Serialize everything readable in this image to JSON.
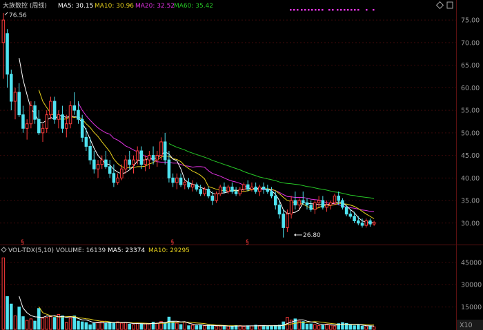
{
  "header": {
    "stock_name": "大族数控 (周线)",
    "ma5": "MA5: 30.15",
    "ma10": "MA10: 30.96",
    "ma20": "MA20: 32.52",
    "ma60": "MA60: 35.42",
    "settings_icon": "diamond-icon",
    "expand_icon": "square-icon"
  },
  "volume_header": {
    "title": "VOL-TDX(5,10)",
    "volume": "VOLUME: 16139",
    "ma5": "MA5: 23374",
    "ma10": "MA10: 29295",
    "settings_icon": "diamond-icon"
  },
  "annotations": {
    "high": "76.56",
    "low": "26.80",
    "event_mark": "§",
    "volume_unit": "X10"
  },
  "colors": {
    "up": "#ff3b3b",
    "down": "#4fe3f0",
    "ma5": "#ffffff",
    "ma10": "#e8d21d",
    "ma20": "#e233e2",
    "ma60": "#27c827",
    "grid": "#3a0a0a",
    "axis_text": "#9a9a9a",
    "background": "#000000"
  },
  "chart_data": [
    {
      "type": "candlestick",
      "title": "大族数控 (周线)",
      "ylim": [
        26,
        77
      ],
      "yticks": [
        30,
        35,
        40,
        45,
        50,
        55,
        60,
        65,
        70,
        75
      ],
      "grid": true,
      "max_label": 76.56,
      "min_label": 26.8,
      "event_marks_at_index": [
        5,
        43,
        62
      ],
      "candles": [
        [
          70,
          76.56,
          62,
          75
        ],
        [
          72,
          73,
          60,
          63
        ],
        [
          63,
          64,
          55,
          57
        ],
        [
          57,
          60,
          53,
          59
        ],
        [
          59,
          61,
          53.5,
          54
        ],
        [
          54,
          56,
          50,
          51
        ],
        [
          51,
          53,
          48.5,
          52
        ],
        [
          52,
          57,
          51,
          56
        ],
        [
          56,
          57,
          52,
          53
        ],
        [
          53,
          55,
          49.5,
          50
        ],
        [
          50,
          52,
          48,
          51
        ],
        [
          51,
          55,
          50,
          54
        ],
        [
          54,
          58,
          53,
          57
        ],
        [
          57,
          58,
          52,
          53
        ],
        [
          53,
          55,
          51,
          54
        ],
        [
          54,
          56,
          50,
          51
        ],
        [
          51,
          54,
          49,
          52
        ],
        [
          52,
          57,
          51,
          56
        ],
        [
          56,
          59,
          54,
          55
        ],
        [
          55,
          57,
          52,
          53
        ],
        [
          53,
          54,
          48,
          49
        ],
        [
          49,
          51,
          46,
          47
        ],
        [
          47,
          49,
          43,
          44
        ],
        [
          44,
          46,
          41,
          42
        ],
        [
          42,
          44,
          40,
          43
        ],
        [
          43,
          45,
          42,
          44
        ],
        [
          44,
          46,
          42,
          42.5
        ],
        [
          42.5,
          44,
          40,
          41
        ],
        [
          41,
          43,
          38,
          39
        ],
        [
          39,
          41,
          38.5,
          40
        ],
        [
          40,
          43,
          39.5,
          42
        ],
        [
          42,
          45,
          41,
          44
        ],
        [
          44,
          46,
          42,
          43
        ],
        [
          43,
          45,
          41,
          44
        ],
        [
          44,
          47,
          43,
          46
        ],
        [
          46,
          47,
          42,
          43
        ],
        [
          43,
          45,
          41.5,
          44
        ],
        [
          44,
          46,
          42,
          45
        ],
        [
          45,
          47,
          43,
          44
        ],
        [
          44,
          46,
          42.5,
          45
        ],
        [
          45,
          49,
          44,
          48
        ],
        [
          48,
          50,
          43,
          44
        ],
        [
          44,
          46,
          39,
          40
        ],
        [
          40,
          41,
          38,
          39
        ],
        [
          39,
          41,
          37.5,
          40
        ],
        [
          40,
          41,
          38,
          38.5
        ],
        [
          38.5,
          39.5,
          37.5,
          39
        ],
        [
          39,
          40,
          37.5,
          38
        ],
        [
          38,
          39.5,
          37,
          38.5
        ],
        [
          38.5,
          39,
          37,
          37.5
        ],
        [
          37.5,
          38.5,
          36,
          36.5
        ],
        [
          36.5,
          38,
          36,
          37.5
        ],
        [
          37.5,
          38,
          35.5,
          36
        ],
        [
          36,
          37,
          34,
          35
        ],
        [
          35,
          37,
          34.5,
          36.5
        ],
        [
          36.5,
          38.5,
          36,
          38
        ],
        [
          38,
          39,
          36.5,
          37
        ],
        [
          37,
          38.5,
          36.5,
          38
        ],
        [
          38,
          39,
          36.5,
          37
        ],
        [
          37,
          38,
          36,
          36.5
        ],
        [
          36.5,
          38,
          36,
          37.5
        ],
        [
          37.5,
          39,
          37,
          38.5
        ],
        [
          38.5,
          39.5,
          37,
          37.5
        ],
        [
          37.5,
          39,
          37,
          38
        ],
        [
          38,
          39,
          36.5,
          37
        ],
        [
          37,
          38.5,
          36,
          38
        ],
        [
          38,
          39,
          36.5,
          37.5
        ],
        [
          37.5,
          38.5,
          36.5,
          37
        ],
        [
          37,
          38,
          35.5,
          36
        ],
        [
          36,
          37,
          33,
          34
        ],
        [
          34,
          35,
          31,
          32
        ],
        [
          32,
          33,
          26.8,
          29
        ],
        [
          29,
          33,
          28,
          32
        ],
        [
          32,
          36,
          31,
          35
        ],
        [
          35,
          37,
          33,
          34
        ],
        [
          34,
          35.5,
          33,
          35
        ],
        [
          35,
          37,
          34,
          34.5
        ],
        [
          34.5,
          35.5,
          33,
          34
        ],
        [
          34,
          35,
          32.5,
          33
        ],
        [
          33,
          35,
          32,
          34.5
        ],
        [
          34.5,
          36,
          33.5,
          35
        ],
        [
          35,
          36,
          33,
          33.5
        ],
        [
          33.5,
          35,
          32.5,
          34
        ],
        [
          34,
          35,
          33,
          34.5
        ],
        [
          34.5,
          36.5,
          34,
          36
        ],
        [
          36,
          37,
          34,
          35
        ],
        [
          35,
          35.5,
          33,
          33.5
        ],
        [
          33.5,
          34,
          31.5,
          32
        ],
        [
          32,
          33,
          31,
          31.5
        ],
        [
          31.5,
          32.5,
          30,
          30.5
        ],
        [
          30.5,
          31.5,
          29.5,
          30
        ],
        [
          30,
          31,
          29,
          29.5
        ],
        [
          29.5,
          31,
          29,
          30.5
        ],
        [
          30.5,
          31,
          29.2,
          29.8
        ],
        [
          29.8,
          30.5,
          29.4,
          30.15
        ]
      ],
      "ma5": [
        null,
        null,
        null,
        null,
        66.6,
        61.8,
        58.4,
        55.3,
        54.3,
        52.4,
        52.2,
        52.8,
        53.4,
        53.1,
        53.8,
        53.8,
        53.4,
        53.8,
        53.6,
        53.4,
        52.2,
        50.6,
        48.6,
        46.6,
        45.0,
        44.0,
        43.2,
        42.9,
        41.9,
        41.3,
        40.9,
        41.2,
        41.8,
        42.6,
        43.8,
        44.0,
        44.0,
        44.4,
        44.4,
        44.4,
        45.2,
        45.8,
        45.3,
        44.2,
        43.8,
        42.0,
        39.6,
        38.9,
        38.6,
        38.4,
        37.9,
        37.6,
        37.3,
        36.6,
        36.4,
        36.6,
        36.7,
        36.9,
        37.3,
        37.3,
        37.2,
        37.5,
        37.6,
        37.7,
        37.6,
        37.8,
        37.6,
        37.5,
        37.2,
        36.4,
        35.0,
        32.9,
        32.1,
        32.3,
        32.4,
        32.9,
        34.5,
        34.4,
        34.3,
        34.2,
        34.1,
        34.1,
        34.1,
        34.2,
        34.5,
        34.7,
        34.6,
        33.8,
        33.0,
        32.3,
        31.2,
        30.5,
        30.2,
        30.1,
        30.15
      ],
      "ma10": [
        null,
        null,
        null,
        null,
        null,
        null,
        null,
        null,
        null,
        59.5,
        57.0,
        55.6,
        54.4,
        53.7,
        53.1,
        53.0,
        53.1,
        53.6,
        53.4,
        53.6,
        53.0,
        52.0,
        51.2,
        50.1,
        49.2,
        48.0,
        46.9,
        45.8,
        44.2,
        43.2,
        42.5,
        42.2,
        42.3,
        42.3,
        42.5,
        42.5,
        42.6,
        43.1,
        43.4,
        44.1,
        44.6,
        44.9,
        44.8,
        44.3,
        44.1,
        43.6,
        42.7,
        42.1,
        41.5,
        41.1,
        40.6,
        39.8,
        38.1,
        37.8,
        37.5,
        37.3,
        37.2,
        37.2,
        37.2,
        37.2,
        37.1,
        37.0,
        37.2,
        37.4,
        37.5,
        37.6,
        37.6,
        37.6,
        37.5,
        37.2,
        36.5,
        35.7,
        35.0,
        34.8,
        34.5,
        34.4,
        34.2,
        33.7,
        33.3,
        33.2,
        33.4,
        33.9,
        33.9,
        33.9,
        34.1,
        34.4,
        34.3,
        34.2,
        34.0,
        33.7,
        33.2,
        32.6,
        32.0,
        31.5,
        30.96
      ],
      "ma20": [
        null,
        null,
        null,
        null,
        null,
        null,
        null,
        null,
        null,
        null,
        null,
        null,
        null,
        null,
        null,
        null,
        null,
        null,
        null,
        56.6,
        55.0,
        53.8,
        52.8,
        51.9,
        51.1,
        50.5,
        50.0,
        49.7,
        48.8,
        48.4,
        47.8,
        47.1,
        46.7,
        46.2,
        45.8,
        45.3,
        44.8,
        44.5,
        43.9,
        43.6,
        43.5,
        43.5,
        43.5,
        43.3,
        43.3,
        43.0,
        42.7,
        42.6,
        42.4,
        42.5,
        42.5,
        42.4,
        41.6,
        41.0,
        40.7,
        40.4,
        40.0,
        39.6,
        39.3,
        39.1,
        38.8,
        38.4,
        37.8,
        37.6,
        37.5,
        37.4,
        37.4,
        37.4,
        37.4,
        37.2,
        36.8,
        36.3,
        35.9,
        35.8,
        35.7,
        35.7,
        35.7,
        35.5,
        35.3,
        35.2,
        35.1,
        34.8,
        34.5,
        34.3,
        34.3,
        34.1,
        33.8,
        33.5,
        33.4,
        33.3,
        33.1,
        32.9,
        32.8,
        32.6,
        32.52
      ],
      "ma60": [
        null,
        null,
        null,
        null,
        null,
        null,
        null,
        null,
        null,
        null,
        null,
        null,
        null,
        null,
        null,
        null,
        null,
        null,
        null,
        null,
        null,
        null,
        null,
        null,
        null,
        null,
        null,
        null,
        null,
        null,
        null,
        null,
        null,
        null,
        null,
        null,
        null,
        null,
        null,
        null,
        null,
        null,
        47.6,
        47.2,
        46.8,
        46.5,
        46.2,
        45.8,
        45.5,
        45.2,
        44.9,
        44.6,
        44.3,
        43.9,
        43.6,
        43.3,
        43.0,
        42.7,
        42.4,
        42.1,
        41.8,
        41.4,
        41.1,
        40.8,
        40.5,
        40.2,
        40.0,
        39.8,
        39.6,
        39.4,
        39.1,
        38.9,
        38.8,
        38.7,
        38.6,
        38.5,
        38.3,
        38.1,
        38.0,
        37.8,
        37.6,
        37.5,
        37.3,
        37.1,
        36.9,
        36.8,
        36.6,
        36.4,
        36.2,
        36.1,
        35.9,
        35.8,
        35.7,
        35.6,
        35.42
      ]
    },
    {
      "type": "bar",
      "title": "VOL-TDX(5,10)",
      "ylim": [
        0,
        50000
      ],
      "yticks": [
        15000,
        30000,
        45000
      ],
      "volume": [
        48000,
        22000,
        17000,
        9000,
        15000,
        8500,
        6000,
        7000,
        5500,
        14000,
        7500,
        8000,
        8500,
        8000,
        10000,
        9000,
        4500,
        7500,
        9000,
        5500,
        5000,
        4500,
        3000,
        4000,
        4800,
        5500,
        4000,
        4800,
        4500,
        5000,
        4200,
        4700,
        3500,
        3000,
        4200,
        3500,
        4000,
        3500,
        4800,
        4200,
        5200,
        4500,
        8200,
        5000,
        4200,
        3200,
        5000,
        2400,
        2800,
        2500,
        3000,
        2400,
        2800,
        2500,
        1900,
        2200,
        2000,
        2200,
        2100,
        2600,
        2500,
        1900,
        2400,
        2300,
        2800,
        2600,
        2400,
        2000,
        2200,
        2600,
        2800,
        5000,
        8000,
        6200,
        7000,
        5500,
        5200,
        3500,
        3600,
        3200,
        2500,
        2900,
        3500,
        2800,
        2200,
        3800,
        4500,
        4000,
        3200,
        2400,
        2800,
        2200,
        1800,
        2400,
        1600
      ],
      "ma5": [
        null,
        null,
        null,
        null,
        22200,
        14300,
        11100,
        9200,
        8400,
        8200,
        8000,
        9000,
        8700,
        9200,
        8400,
        8700,
        8000,
        8400,
        8000,
        7200,
        6300,
        6300,
        5400,
        4400,
        4420,
        4360,
        4420,
        4620,
        4560,
        4740,
        4580,
        4640,
        4280,
        3880,
        3920,
        3780,
        3640,
        3740,
        4000,
        4040,
        4540,
        4440,
        5380,
        5420,
        5420,
        5020,
        5120,
        4160,
        3520,
        3180,
        3140,
        2620,
        2700,
        2640,
        2480,
        2380,
        2460,
        2180,
        2140,
        2220,
        2280,
        2260,
        2300,
        2340,
        2380,
        2400,
        2500,
        2420,
        2400,
        2400,
        2400,
        2720,
        3920,
        4760,
        5800,
        6340,
        6380,
        5480,
        4960,
        4600,
        3600,
        3140,
        3140,
        3000,
        2780,
        3040,
        3520,
        3500,
        3400,
        3380,
        3380,
        2920,
        2480,
        2320,
        2160
      ],
      "ma10": [
        null,
        null,
        null,
        null,
        null,
        null,
        null,
        null,
        null,
        15200,
        11200,
        10100,
        9200,
        8800,
        8300,
        8300,
        8500,
        8600,
        8600,
        7800,
        7500,
        7100,
        6800,
        6200,
        5800,
        5300,
        5400,
        5000,
        4500,
        4600,
        4500,
        4500,
        4500,
        4200,
        4300,
        4200,
        4100,
        4000,
        4000,
        4000,
        4100,
        4100,
        4500,
        4600,
        4700,
        4800,
        4800,
        4800,
        4500,
        4300,
        4100,
        3900,
        3400,
        3100,
        2800,
        2800,
        2600,
        2400,
        2400,
        2400,
        2300,
        2300,
        2300,
        2300,
        2300,
        2300,
        2400,
        2400,
        2400,
        2400,
        2400,
        2600,
        3200,
        3600,
        4100,
        4400,
        4600,
        4700,
        4900,
        5200,
        5000,
        4700,
        4300,
        4000,
        3700,
        3300,
        3300,
        3300,
        3200,
        3100,
        3200,
        3200,
        3000,
        2900,
        2900
      ]
    }
  ]
}
